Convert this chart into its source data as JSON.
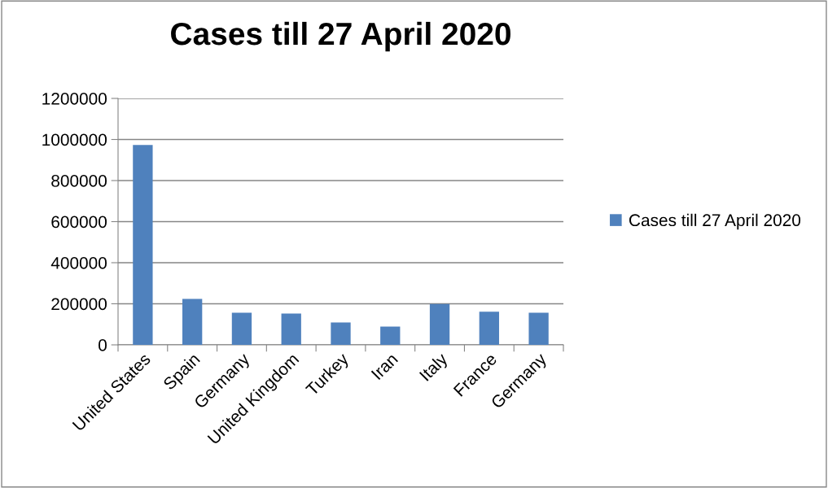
{
  "chart_data": {
    "type": "bar",
    "title": "Cases till 27 April 2020",
    "categories": [
      "United States",
      "Spain",
      "Germany",
      "United Kingdom",
      "Turkey",
      "Iran",
      "Italy",
      "France",
      "Germany"
    ],
    "series": [
      {
        "name": "Cases till 27 April 2020",
        "color": "#4f81bd",
        "values": [
          973000,
          224000,
          156000,
          152000,
          109000,
          89000,
          199000,
          161000,
          156000
        ]
      }
    ],
    "ylim": [
      0,
      1200000
    ],
    "yticks": [
      0,
      200000,
      400000,
      600000,
      800000,
      1000000,
      1200000
    ],
    "grid": "y",
    "legend": "right"
  }
}
